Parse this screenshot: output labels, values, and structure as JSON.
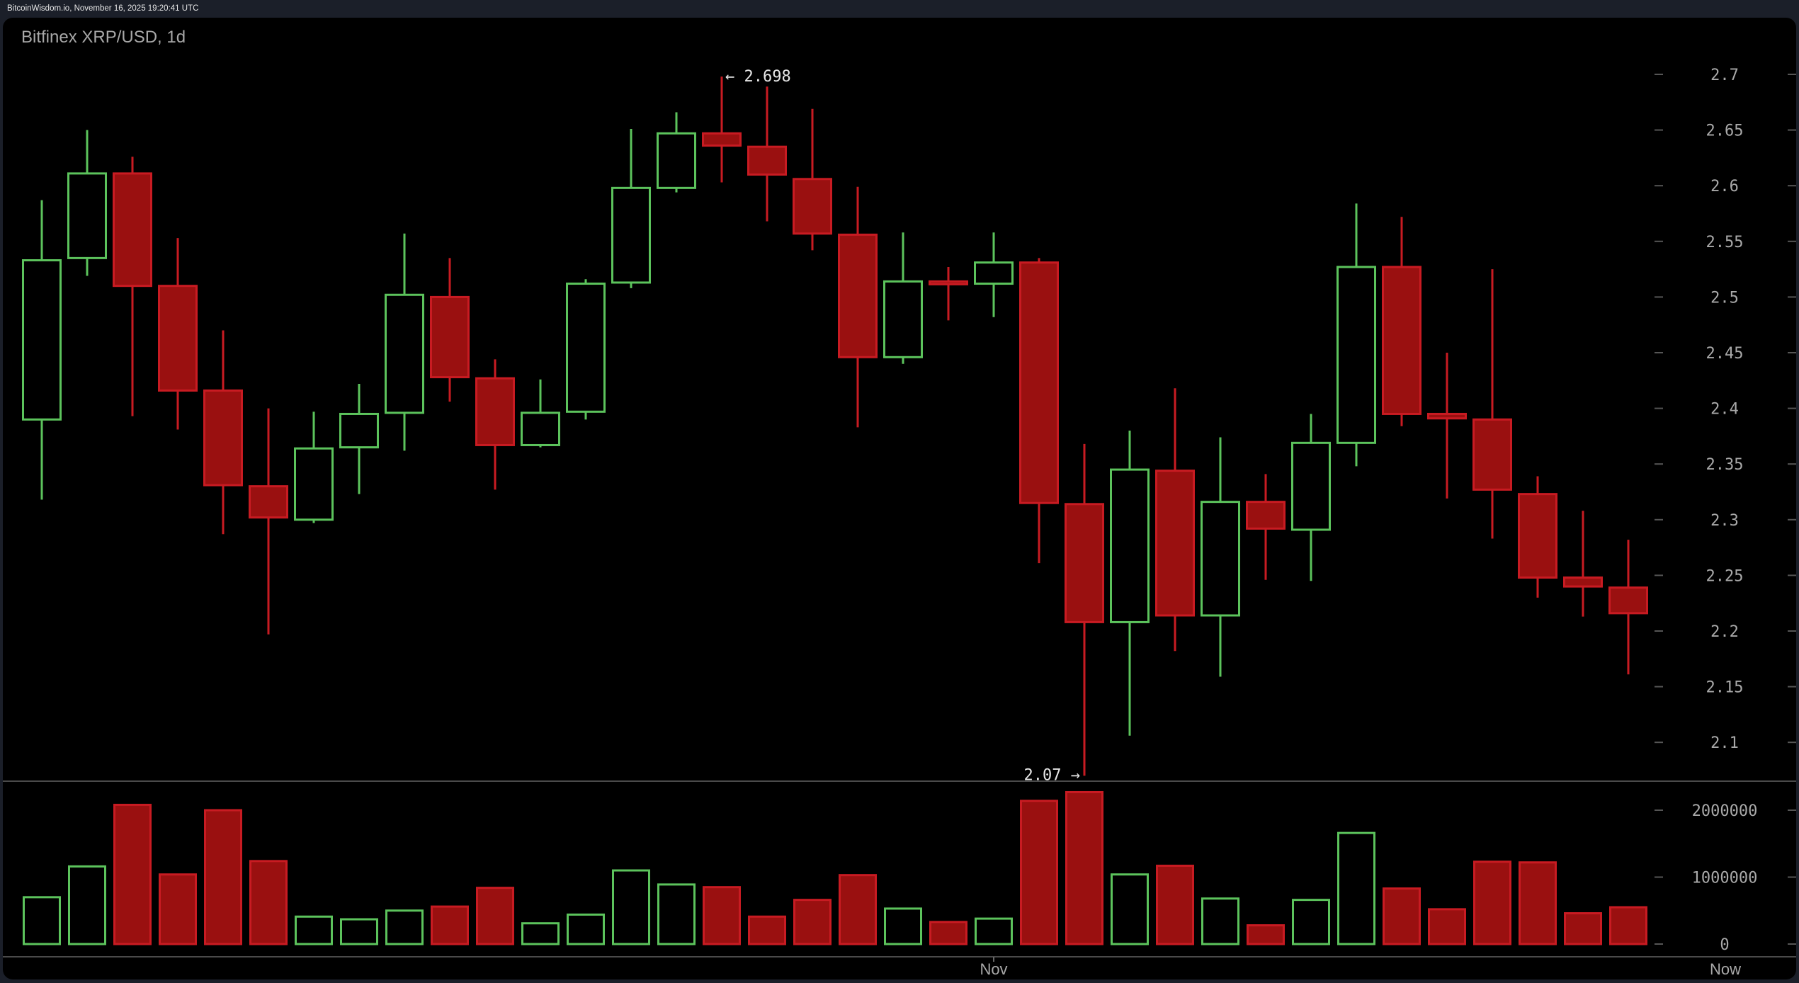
{
  "topbar": {
    "text": "BitcoinWisdom.io, November 16, 2025 19:20:41 UTC"
  },
  "chart": {
    "title": "Bitfinex XRP/USD, 1d",
    "high_annotation": "← 2.698",
    "low_annotation": "2.07 →",
    "x_labels": [
      {
        "label": "Nov",
        "candle_index": 21
      },
      {
        "label": "Now",
        "candle_index": 37
      }
    ]
  },
  "colors": {
    "up": "#5cc35c",
    "down_fill": "#9a1010",
    "down_border": "#c81b22",
    "background": "#000000",
    "frame": "#1b1f29",
    "axis_text": "#a9a9a9",
    "separator": "#4a4a4a"
  },
  "chart_data": [
    {
      "type": "candlestick",
      "title": "Bitfinex XRP/USD, 1d",
      "xlabel": "",
      "ylabel": "",
      "x_tick_labels": [
        "Nov",
        "Now"
      ],
      "y_ticks": [
        2.1,
        2.15,
        2.2,
        2.25,
        2.3,
        2.35,
        2.4,
        2.45,
        2.5,
        2.55,
        2.6,
        2.65,
        2.7
      ],
      "y_tick_labels": [
        "2.1",
        "2.15",
        "2.2",
        "2.25",
        "2.3",
        "2.35",
        "2.4",
        "2.45",
        "2.5",
        "2.55",
        "2.6",
        "2.65",
        "2.7"
      ],
      "ylim": [
        2.065,
        2.7
      ],
      "grid": false,
      "annotations": [
        {
          "text": "← 2.698",
          "value": 2.698,
          "candle_index": 15
        },
        {
          "text": "2.07 →",
          "value": 2.07,
          "candle_index": 23
        }
      ],
      "candles": [
        {
          "o": 2.39,
          "h": 2.587,
          "l": 2.318,
          "c": 2.533
        },
        {
          "o": 2.535,
          "h": 2.65,
          "l": 2.519,
          "c": 2.611
        },
        {
          "o": 2.611,
          "h": 2.626,
          "l": 2.393,
          "c": 2.51
        },
        {
          "o": 2.51,
          "h": 2.553,
          "l": 2.381,
          "c": 2.416
        },
        {
          "o": 2.416,
          "h": 2.47,
          "l": 2.287,
          "c": 2.331
        },
        {
          "o": 2.33,
          "h": 2.4,
          "l": 2.197,
          "c": 2.302
        },
        {
          "o": 2.3,
          "h": 2.397,
          "l": 2.297,
          "c": 2.364
        },
        {
          "o": 2.365,
          "h": 2.422,
          "l": 2.323,
          "c": 2.395
        },
        {
          "o": 2.396,
          "h": 2.557,
          "l": 2.362,
          "c": 2.502
        },
        {
          "o": 2.5,
          "h": 2.535,
          "l": 2.406,
          "c": 2.428
        },
        {
          "o": 2.427,
          "h": 2.444,
          "l": 2.327,
          "c": 2.367
        },
        {
          "o": 2.367,
          "h": 2.426,
          "l": 2.365,
          "c": 2.396
        },
        {
          "o": 2.397,
          "h": 2.516,
          "l": 2.39,
          "c": 2.512
        },
        {
          "o": 2.513,
          "h": 2.651,
          "l": 2.508,
          "c": 2.598
        },
        {
          "o": 2.598,
          "h": 2.666,
          "l": 2.594,
          "c": 2.647
        },
        {
          "o": 2.647,
          "h": 2.698,
          "l": 2.603,
          "c": 2.636
        },
        {
          "o": 2.635,
          "h": 2.689,
          "l": 2.568,
          "c": 2.61
        },
        {
          "o": 2.606,
          "h": 2.669,
          "l": 2.542,
          "c": 2.557
        },
        {
          "o": 2.556,
          "h": 2.599,
          "l": 2.383,
          "c": 2.446
        },
        {
          "o": 2.446,
          "h": 2.558,
          "l": 2.44,
          "c": 2.514
        },
        {
          "o": 2.514,
          "h": 2.527,
          "l": 2.479,
          "c": 2.512
        },
        {
          "o": 2.512,
          "h": 2.558,
          "l": 2.482,
          "c": 2.531
        },
        {
          "o": 2.531,
          "h": 2.535,
          "l": 2.261,
          "c": 2.315
        },
        {
          "o": 2.314,
          "h": 2.368,
          "l": 2.07,
          "c": 2.208
        },
        {
          "o": 2.208,
          "h": 2.38,
          "l": 2.106,
          "c": 2.345
        },
        {
          "o": 2.344,
          "h": 2.418,
          "l": 2.182,
          "c": 2.214
        },
        {
          "o": 2.214,
          "h": 2.374,
          "l": 2.159,
          "c": 2.316
        },
        {
          "o": 2.316,
          "h": 2.341,
          "l": 2.246,
          "c": 2.292
        },
        {
          "o": 2.291,
          "h": 2.395,
          "l": 2.245,
          "c": 2.369
        },
        {
          "o": 2.369,
          "h": 2.584,
          "l": 2.348,
          "c": 2.527
        },
        {
          "o": 2.527,
          "h": 2.572,
          "l": 2.384,
          "c": 2.395
        },
        {
          "o": 2.395,
          "h": 2.45,
          "l": 2.319,
          "c": 2.391
        },
        {
          "o": 2.39,
          "h": 2.525,
          "l": 2.283,
          "c": 2.327
        },
        {
          "o": 2.323,
          "h": 2.339,
          "l": 2.23,
          "c": 2.248
        },
        {
          "o": 2.248,
          "h": 2.308,
          "l": 2.213,
          "c": 2.24
        },
        {
          "o": 2.239,
          "h": 2.282,
          "l": 2.161,
          "c": 2.216
        }
      ]
    },
    {
      "type": "bar",
      "title": "Volume",
      "y_ticks": [
        0,
        1000000,
        2000000
      ],
      "y_tick_labels": [
        "0",
        "1000000",
        "2000000"
      ],
      "ylim": [
        0,
        2300000
      ],
      "values": [
        700000,
        1160000,
        2080000,
        1040000,
        2000000,
        1240000,
        410000,
        370000,
        500000,
        560000,
        840000,
        310000,
        440000,
        1100000,
        890000,
        850000,
        410000,
        660000,
        1030000,
        530000,
        330000,
        380000,
        2140000,
        2270000,
        1040000,
        1170000,
        680000,
        280000,
        660000,
        1660000,
        830000,
        520000,
        1230000,
        1220000,
        460000,
        550000
      ]
    }
  ]
}
